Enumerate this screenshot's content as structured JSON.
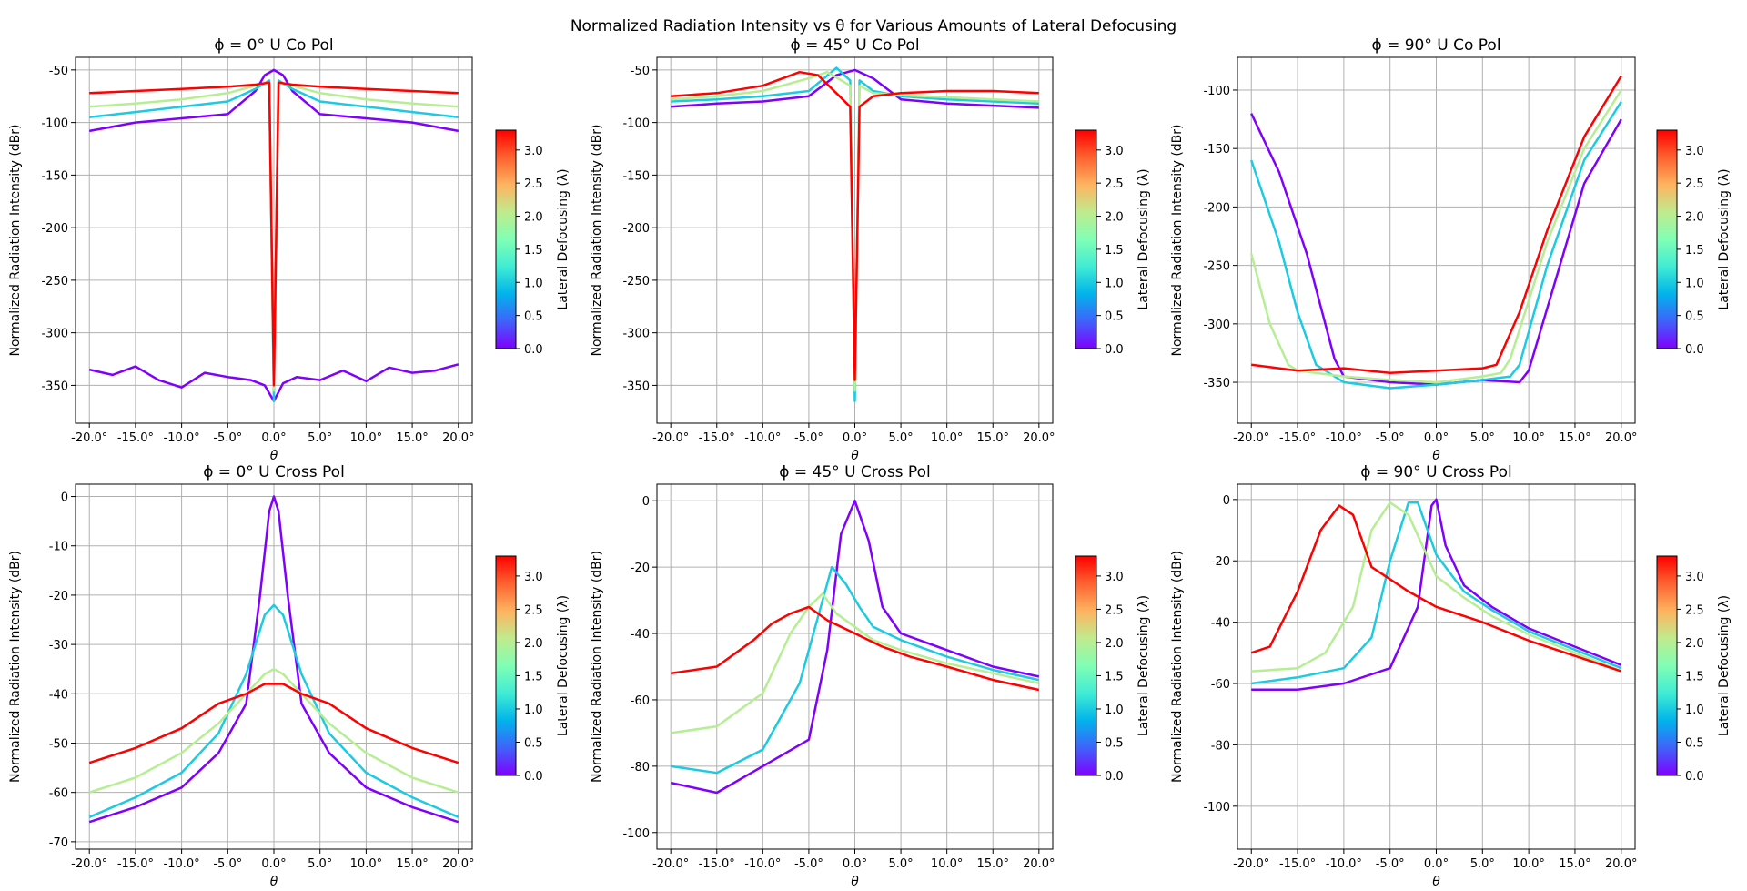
{
  "figure": {
    "title": "Normalized Radiation Intensity vs θ for Various Amounts of Lateral Defocusing"
  },
  "colorbar": {
    "label": "Lateral Defocusing (λ)",
    "ticks": [
      "0.0",
      "0.5",
      "1.0",
      "1.5",
      "2.0",
      "2.5",
      "3.0"
    ],
    "range": [
      0,
      3.3
    ],
    "colormap": [
      "#8000ff",
      "#4062fa",
      "#01b3eb",
      "#40ecd4",
      "#80ffb4",
      "#c0eb8d",
      "#ffb360",
      "#ff6230",
      "#ff0000"
    ]
  },
  "chart_data": [
    {
      "type": "line",
      "title": "ϕ = 0° U Co Pol",
      "xlabel": "θ",
      "ylabel": "Normalized Radiation Intensity (dBr)",
      "xlim": [
        -21.5,
        21.5
      ],
      "ylim": [
        -386,
        -38
      ],
      "xticks": [
        "-20.0°",
        "-15.0°",
        "-10.0°",
        "-5.0°",
        "0.0°",
        "5.0°",
        "10.0°",
        "15.0°",
        "20.0°"
      ],
      "yticks": [
        "-50",
        "-100",
        "-150",
        "-200",
        "-250",
        "-300",
        "-350"
      ],
      "grid": true,
      "series": [
        {
          "color_value": 0.0,
          "x": [
            -20,
            -17.5,
            -15,
            -12.5,
            -10,
            -7.5,
            -5,
            -2.5,
            -1,
            0,
            1,
            2.5,
            5,
            7.5,
            10,
            12.5,
            15,
            17.5,
            20
          ],
          "y": [
            -335,
            -340,
            -332,
            -345,
            -352,
            -338,
            -342,
            -345,
            -350,
            -365,
            -348,
            -342,
            -345,
            -336,
            -346,
            -333,
            -338,
            -336,
            -330
          ]
        },
        {
          "color_value": 0.0,
          "x": [
            -20,
            -15,
            -10,
            -5,
            -2,
            -1,
            0,
            1,
            2,
            5,
            10,
            15,
            20
          ],
          "y": [
            -108,
            -100,
            -96,
            -92,
            -70,
            -55,
            -50,
            -55,
            -70,
            -92,
            -96,
            -100,
            -108
          ]
        },
        {
          "color_value": 1.0,
          "x": [
            -20,
            -15,
            -10,
            -5,
            -2,
            -0.5,
            0,
            0.5,
            2,
            5,
            10,
            15,
            20
          ],
          "y": [
            -95,
            -90,
            -85,
            -80,
            -68,
            -60,
            -365,
            -60,
            -68,
            -80,
            -85,
            -90,
            -95
          ]
        },
        {
          "color_value": 2.0,
          "x": [
            -20,
            -15,
            -10,
            -5,
            -2,
            -0.5,
            0,
            0.5,
            2,
            5,
            10,
            15,
            20
          ],
          "y": [
            -85,
            -82,
            -78,
            -72,
            -65,
            -62,
            -355,
            -62,
            -65,
            -72,
            -78,
            -82,
            -85
          ]
        },
        {
          "color_value": 3.3,
          "x": [
            -20,
            -15,
            -10,
            -5,
            -2,
            -0.5,
            0,
            0.5,
            2,
            5,
            10,
            15,
            20
          ],
          "y": [
            -72,
            -70,
            -68,
            -66,
            -64,
            -62,
            -350,
            -62,
            -64,
            -66,
            -68,
            -70,
            -72
          ]
        }
      ]
    },
    {
      "type": "line",
      "title": "ϕ = 45° U Co Pol",
      "xlabel": "θ",
      "ylabel": "Normalized Radiation Intensity (dBr)",
      "xlim": [
        -21.5,
        21.5
      ],
      "ylim": [
        -386,
        -38
      ],
      "xticks": [
        "-20.0°",
        "-15.0°",
        "-10.0°",
        "-5.0°",
        "0.0°",
        "5.0°",
        "10.0°",
        "15.0°",
        "20.0°"
      ],
      "yticks": [
        "-50",
        "-100",
        "-150",
        "-200",
        "-250",
        "-300",
        "-350"
      ],
      "grid": true,
      "series": [
        {
          "color_value": 0.0,
          "x": [
            -20,
            -15,
            -10,
            -5,
            -2,
            0,
            2,
            5,
            10,
            15,
            20
          ],
          "y": [
            -85,
            -82,
            -80,
            -75,
            -55,
            -50,
            -58,
            -78,
            -82,
            -84,
            -86
          ]
        },
        {
          "color_value": 1.0,
          "x": [
            -20,
            -15,
            -10,
            -5,
            -2,
            -0.5,
            0,
            0.5,
            2,
            5,
            10,
            15,
            20
          ],
          "y": [
            -80,
            -78,
            -75,
            -70,
            -48,
            -60,
            -365,
            -60,
            -70,
            -75,
            -78,
            -80,
            -82
          ]
        },
        {
          "color_value": 2.0,
          "x": [
            -20,
            -15,
            -10,
            -5,
            -3,
            -0.5,
            0,
            0.5,
            2,
            5,
            10,
            15,
            20
          ],
          "y": [
            -78,
            -75,
            -70,
            -58,
            -52,
            -65,
            -355,
            -65,
            -72,
            -74,
            -76,
            -78,
            -80
          ]
        },
        {
          "color_value": 3.3,
          "x": [
            -20,
            -15,
            -10,
            -6,
            -4,
            -0.5,
            0,
            0.5,
            2,
            5,
            10,
            15,
            20
          ],
          "y": [
            -75,
            -72,
            -65,
            -52,
            -55,
            -85,
            -345,
            -85,
            -75,
            -72,
            -70,
            -70,
            -72
          ]
        }
      ]
    },
    {
      "type": "line",
      "title": "ϕ = 90° U Co Pol",
      "xlabel": "θ",
      "ylabel": "Normalized Radiation Intensity (dBr)",
      "xlim": [
        -21.5,
        21.5
      ],
      "ylim": [
        -385,
        -72
      ],
      "xticks": [
        "-20.0°",
        "-15.0°",
        "-10.0°",
        "-5.0°",
        "0.0°",
        "5.0°",
        "10.0°",
        "15.0°",
        "20.0°"
      ],
      "yticks": [
        "-100",
        "-150",
        "-200",
        "-250",
        "-300",
        "-350"
      ],
      "grid": true,
      "series": [
        {
          "color_value": 0.0,
          "x": [
            -20,
            -17,
            -14,
            -11,
            -10,
            -5,
            0,
            5,
            9,
            10,
            13,
            16,
            20
          ],
          "y": [
            -120,
            -170,
            -240,
            -330,
            -345,
            -350,
            -352,
            -348,
            -350,
            -340,
            -260,
            -180,
            -125
          ]
        },
        {
          "color_value": 1.0,
          "x": [
            -20,
            -17,
            -15,
            -13,
            -10,
            -5,
            0,
            5,
            8,
            9,
            12,
            16,
            20
          ],
          "y": [
            -160,
            -230,
            -290,
            -335,
            -350,
            -355,
            -352,
            -348,
            -345,
            -335,
            -250,
            -160,
            -110
          ]
        },
        {
          "color_value": 2.0,
          "x": [
            -20,
            -18,
            -16,
            -15,
            -10,
            -5,
            0,
            5,
            7,
            8,
            12,
            16,
            20
          ],
          "y": [
            -240,
            -300,
            -335,
            -340,
            -345,
            -348,
            -350,
            -345,
            -342,
            -330,
            -230,
            -150,
            -100
          ]
        },
        {
          "color_value": 3.3,
          "x": [
            -20,
            -15,
            -10,
            -5,
            0,
            5,
            6.5,
            9,
            12,
            16,
            20
          ],
          "y": [
            -335,
            -340,
            -338,
            -342,
            -340,
            -338,
            -335,
            -290,
            -220,
            -140,
            -88
          ]
        }
      ]
    },
    {
      "type": "line",
      "title": "ϕ = 0° U Cross Pol",
      "xlabel": "θ",
      "ylabel": "Normalized Radiation Intensity (dBr)",
      "xlim": [
        -21.5,
        21.5
      ],
      "ylim": [
        -71.5,
        2.5
      ],
      "xticks": [
        "-20.0°",
        "-15.0°",
        "-10.0°",
        "-5.0°",
        "0.0°",
        "5.0°",
        "10.0°",
        "15.0°",
        "20.0°"
      ],
      "yticks": [
        "0",
        "-10",
        "-20",
        "-30",
        "-40",
        "-50",
        "-60",
        "-70"
      ],
      "grid": true,
      "series": [
        {
          "color_value": 0.0,
          "x": [
            -20,
            -15,
            -10,
            -6,
            -3,
            -1.5,
            -0.5,
            0,
            0.5,
            1.5,
            3,
            6,
            10,
            15,
            20
          ],
          "y": [
            -66,
            -63,
            -59,
            -52,
            -42,
            -20,
            -3,
            0,
            -3,
            -20,
            -42,
            -52,
            -59,
            -63,
            -66
          ]
        },
        {
          "color_value": 1.0,
          "x": [
            -20,
            -15,
            -10,
            -6,
            -3,
            -1,
            0,
            1,
            3,
            6,
            10,
            15,
            20
          ],
          "y": [
            -65,
            -61,
            -56,
            -48,
            -36,
            -24,
            -22,
            -24,
            -36,
            -48,
            -56,
            -61,
            -65
          ]
        },
        {
          "color_value": 2.0,
          "x": [
            -20,
            -15,
            -10,
            -6,
            -3,
            -1,
            0,
            1,
            3,
            6,
            10,
            15,
            20
          ],
          "y": [
            -60,
            -57,
            -52,
            -46,
            -40,
            -36,
            -35,
            -36,
            -40,
            -46,
            -52,
            -57,
            -60
          ]
        },
        {
          "color_value": 3.3,
          "x": [
            -20,
            -15,
            -10,
            -6,
            -3,
            -1,
            0,
            1,
            3,
            6,
            10,
            15,
            20
          ],
          "y": [
            -54,
            -51,
            -47,
            -42,
            -40,
            -38,
            -38,
            -38,
            -40,
            -42,
            -47,
            -51,
            -54
          ]
        }
      ]
    },
    {
      "type": "line",
      "title": "ϕ = 45° U Cross Pol",
      "xlabel": "θ",
      "ylabel": "Normalized Radiation Intensity (dBr)",
      "xlim": [
        -21.5,
        21.5
      ],
      "ylim": [
        -105,
        5
      ],
      "xticks": [
        "-20.0°",
        "-15.0°",
        "-10.0°",
        "-5.0°",
        "0.0°",
        "5.0°",
        "10.0°",
        "15.0°",
        "20.0°"
      ],
      "yticks": [
        "0",
        "-20",
        "-40",
        "-60",
        "-80",
        "-100"
      ],
      "grid": true,
      "series": [
        {
          "color_value": 0.0,
          "x": [
            -20,
            -15,
            -10,
            -5,
            -3,
            -1.5,
            0,
            1.5,
            3,
            5,
            10,
            15,
            20
          ],
          "y": [
            -85,
            -88,
            -80,
            -72,
            -45,
            -10,
            0,
            -12,
            -32,
            -40,
            -45,
            -50,
            -53
          ]
        },
        {
          "color_value": 1.0,
          "x": [
            -20,
            -15,
            -10,
            -6,
            -4,
            -2.5,
            -1,
            0.5,
            2,
            5,
            10,
            15,
            20
          ],
          "y": [
            -80,
            -82,
            -75,
            -55,
            -35,
            -20,
            -25,
            -32,
            -38,
            -42,
            -47,
            -51,
            -54
          ]
        },
        {
          "color_value": 2.0,
          "x": [
            -20,
            -15,
            -10,
            -7,
            -5,
            -3.5,
            -2,
            0,
            2,
            5,
            10,
            15,
            20
          ],
          "y": [
            -70,
            -68,
            -58,
            -40,
            -32,
            -28,
            -34,
            -38,
            -42,
            -45,
            -49,
            -52,
            -55
          ]
        },
        {
          "color_value": 3.3,
          "x": [
            -20,
            -15,
            -11,
            -9,
            -7,
            -5,
            -3,
            0,
            3,
            6,
            10,
            15,
            20
          ],
          "y": [
            -52,
            -50,
            -42,
            -37,
            -34,
            -32,
            -36,
            -40,
            -44,
            -47,
            -50,
            -54,
            -57
          ]
        }
      ]
    },
    {
      "type": "line",
      "title": "ϕ = 90° U Cross Pol",
      "xlabel": "θ",
      "ylabel": "Normalized Radiation Intensity (dBr)",
      "xlim": [
        -21.5,
        21.5
      ],
      "ylim": [
        -114,
        5
      ],
      "xticks": [
        "-20.0°",
        "-15.0°",
        "-10.0°",
        "-5.0°",
        "0.0°",
        "5.0°",
        "10.0°",
        "15.0°",
        "20.0°"
      ],
      "yticks": [
        "0",
        "-20",
        "-40",
        "-60",
        "-80",
        "-100"
      ],
      "grid": true,
      "series": [
        {
          "color_value": 0.0,
          "x": [
            -20,
            -15,
            -10,
            -5,
            -2,
            -0.5,
            0,
            1,
            3,
            6,
            10,
            15,
            20
          ],
          "y": [
            -62,
            -62,
            -60,
            -55,
            -35,
            -2,
            0,
            -15,
            -28,
            -35,
            -42,
            -48,
            -54
          ]
        },
        {
          "color_value": 1.0,
          "x": [
            -20,
            -15,
            -10,
            -7,
            -5,
            -3,
            -2,
            0,
            3,
            6,
            10,
            15,
            20
          ],
          "y": [
            -60,
            -58,
            -55,
            -45,
            -20,
            -1,
            -1,
            -18,
            -30,
            -36,
            -43,
            -49,
            -55
          ]
        },
        {
          "color_value": 2.0,
          "x": [
            -20,
            -15,
            -12,
            -9,
            -7,
            -5,
            -3,
            0,
            3,
            6,
            10,
            15,
            20
          ],
          "y": [
            -56,
            -55,
            -50,
            -35,
            -10,
            -1,
            -5,
            -25,
            -32,
            -38,
            -44,
            -50,
            -56
          ]
        },
        {
          "color_value": 3.3,
          "x": [
            -20,
            -18,
            -15,
            -12.5,
            -10.5,
            -9,
            -7,
            -3,
            0,
            5,
            10,
            15,
            20
          ],
          "y": [
            -50,
            -48,
            -30,
            -10,
            -2,
            -5,
            -22,
            -30,
            -35,
            -40,
            -46,
            -51,
            -56
          ]
        }
      ]
    }
  ]
}
